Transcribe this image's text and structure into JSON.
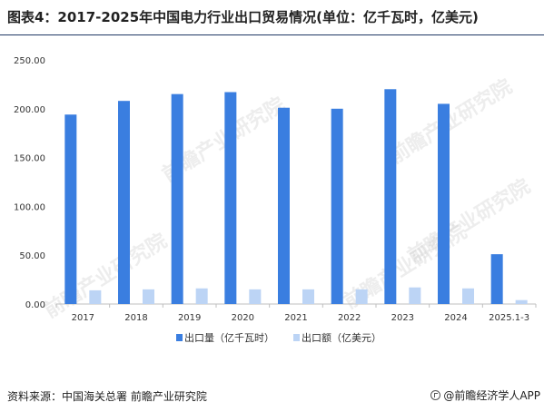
{
  "header": {
    "title": "图表4：2017-2025年中国电力行业出口贸易情况(单位：亿千瓦时，亿美元)"
  },
  "footer": {
    "source": "资料来源：中国海关总署 前瞻产业研究院",
    "brand": "@前瞻经济学人APP"
  },
  "watermark": {
    "text": "前瞻产业研究院"
  },
  "colors": {
    "series1": "#3a7ee0",
    "series2": "#bcd4f5",
    "axis": "#bfbfbf"
  },
  "chart_data": {
    "type": "bar",
    "title": "图表4：2017-2025年中国电力行业出口贸易情况(单位：亿千瓦时，亿美元)",
    "categories": [
      "2017",
      "2018",
      "2019",
      "2020",
      "2021",
      "2022",
      "2023",
      "2024",
      "2025.1-3"
    ],
    "series": [
      {
        "name": "出口量（亿千瓦时）",
        "values": [
          194,
          208,
          215,
          217,
          201,
          200,
          220,
          205,
          51
        ]
      },
      {
        "name": "出口额（亿美元）",
        "values": [
          14,
          15,
          16,
          15,
          15,
          15,
          17,
          16,
          4
        ]
      }
    ],
    "ylim": [
      0,
      250
    ],
    "yticks": [
      "0.00",
      "50.00",
      "100.00",
      "150.00",
      "200.00",
      "250.00"
    ],
    "xlabel": "",
    "ylabel": "",
    "grid": false,
    "legend": "bottom"
  }
}
